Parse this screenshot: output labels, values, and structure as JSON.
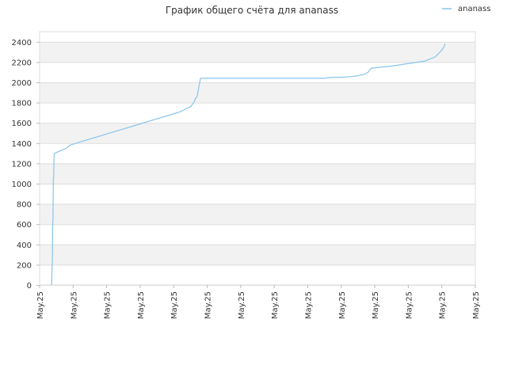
{
  "chart_data": {
    "type": "line",
    "title": "График общего счёта для ananass",
    "xlabel": "",
    "ylabel": "",
    "ylim": [
      0,
      2500
    ],
    "yticks": [
      0,
      200,
      400,
      600,
      800,
      1000,
      1200,
      1400,
      1600,
      1800,
      2000,
      2200,
      2400
    ],
    "xticks": [
      "May.25",
      "May.25",
      "May.25",
      "May.25",
      "May.25",
      "May.25",
      "May.25",
      "May.25",
      "May.25",
      "May.25",
      "May.25",
      "May.25",
      "May.25",
      "May.25"
    ],
    "xlim": [
      0,
      13
    ],
    "grid": true,
    "legend": "top-right",
    "colors": {
      "series": "#88c4ec",
      "band": "#f2f2f2",
      "grid": "#dddddd"
    },
    "series": [
      {
        "name": "ananass",
        "x": [
          0.36,
          0.37,
          0.38,
          0.39,
          0.4,
          0.41,
          0.42,
          0.43,
          0.44,
          0.45,
          0.8,
          0.9,
          1.3,
          1.8,
          2.4,
          3.0,
          3.6,
          3.9,
          4.2,
          4.5,
          4.6,
          4.65,
          4.7,
          4.8,
          5.5,
          6.5,
          7.5,
          8.5,
          8.7,
          9.0,
          9.4,
          9.7,
          9.8,
          9.9,
          10.5,
          11.5,
          11.8,
          11.95,
          12.05,
          12.1
        ],
        "y": [
          0,
          200,
          220,
          600,
          650,
          1050,
          1070,
          1280,
          1290,
          1300,
          1350,
          1380,
          1420,
          1470,
          1530,
          1590,
          1650,
          1680,
          1710,
          1760,
          1800,
          1840,
          1860,
          2040,
          2040,
          2040,
          2040,
          2040,
          2050,
          2050,
          2060,
          2080,
          2100,
          2140,
          2160,
          2210,
          2250,
          2300,
          2340,
          2380
        ]
      }
    ]
  }
}
